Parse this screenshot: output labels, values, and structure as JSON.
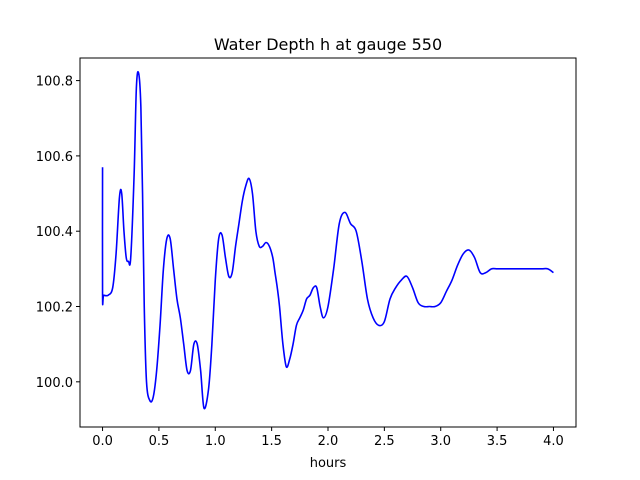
{
  "chart_data": {
    "type": "line",
    "title": "Water Depth h at gauge 550",
    "xlabel": "hours",
    "ylabel": "",
    "xlim": [
      -0.2,
      4.2
    ],
    "ylim": [
      99.88,
      100.86
    ],
    "xticks": [
      0.0,
      0.5,
      1.0,
      1.5,
      2.0,
      2.5,
      3.0,
      3.5,
      4.0
    ],
    "xtick_labels": [
      "0.0",
      "0.5",
      "1.0",
      "1.5",
      "2.0",
      "2.5",
      "3.0",
      "3.5",
      "4.0"
    ],
    "yticks": [
      100.0,
      100.2,
      100.4,
      100.6,
      100.8
    ],
    "ytick_labels": [
      "100.0",
      "100.2",
      "100.4",
      "100.6",
      "100.8"
    ],
    "grid": false,
    "series": [
      {
        "color": "#0000ff",
        "x": [
          0.0,
          0.0,
          0.01,
          0.05,
          0.09,
          0.12,
          0.15,
          0.17,
          0.19,
          0.21,
          0.23,
          0.25,
          0.28,
          0.3,
          0.32,
          0.34,
          0.355,
          0.37,
          0.39,
          0.42,
          0.45,
          0.48,
          0.51,
          0.54,
          0.57,
          0.6,
          0.63,
          0.66,
          0.69,
          0.72,
          0.75,
          0.78,
          0.81,
          0.84,
          0.87,
          0.9,
          0.94,
          0.97,
          1.0,
          1.03,
          1.06,
          1.09,
          1.12,
          1.15,
          1.18,
          1.21,
          1.24,
          1.27,
          1.3,
          1.33,
          1.36,
          1.39,
          1.42,
          1.45,
          1.48,
          1.51,
          1.53,
          1.55,
          1.57,
          1.6,
          1.63,
          1.66,
          1.69,
          1.72,
          1.75,
          1.78,
          1.81,
          1.84,
          1.87,
          1.9,
          1.93,
          1.96,
          2.0,
          2.05,
          2.1,
          2.15,
          2.2,
          2.25,
          2.3,
          2.35,
          2.4,
          2.45,
          2.5,
          2.55,
          2.6,
          2.65,
          2.7,
          2.75,
          2.8,
          2.85,
          2.9,
          2.95,
          3.0,
          3.05,
          3.1,
          3.15,
          3.2,
          3.25,
          3.3,
          3.35,
          3.4,
          3.45,
          3.5,
          3.55,
          3.6,
          3.65,
          3.7,
          3.75,
          3.8,
          3.85,
          3.9,
          3.95,
          4.0
        ],
        "y": [
          100.57,
          100.23,
          100.23,
          100.23,
          100.25,
          100.34,
          100.49,
          100.5,
          100.4,
          100.33,
          100.32,
          100.33,
          100.55,
          100.78,
          100.82,
          100.73,
          100.5,
          100.2,
          100.0,
          99.95,
          99.96,
          100.03,
          100.15,
          100.3,
          100.38,
          100.38,
          100.3,
          100.22,
          100.17,
          100.1,
          100.03,
          100.03,
          100.1,
          100.1,
          100.03,
          99.93,
          99.98,
          100.1,
          100.27,
          100.38,
          100.39,
          100.33,
          100.28,
          100.29,
          100.36,
          100.42,
          100.48,
          100.52,
          100.54,
          100.5,
          100.4,
          100.36,
          100.36,
          100.37,
          100.36,
          100.33,
          100.29,
          100.25,
          100.2,
          100.1,
          100.04,
          100.06,
          100.1,
          100.15,
          100.17,
          100.19,
          100.22,
          100.23,
          100.25,
          100.25,
          100.2,
          100.17,
          100.2,
          100.3,
          100.42,
          100.45,
          100.42,
          100.4,
          100.32,
          100.22,
          100.17,
          100.15,
          100.16,
          100.22,
          100.25,
          100.27,
          100.28,
          100.25,
          100.21,
          100.2,
          100.2,
          100.2,
          100.21,
          100.24,
          100.27,
          100.31,
          100.34,
          100.35,
          100.33,
          100.29,
          100.29,
          100.3,
          100.3,
          100.3,
          100.3,
          100.3,
          100.3,
          100.3,
          100.3,
          100.3,
          100.3,
          100.3,
          100.29
        ]
      }
    ]
  }
}
